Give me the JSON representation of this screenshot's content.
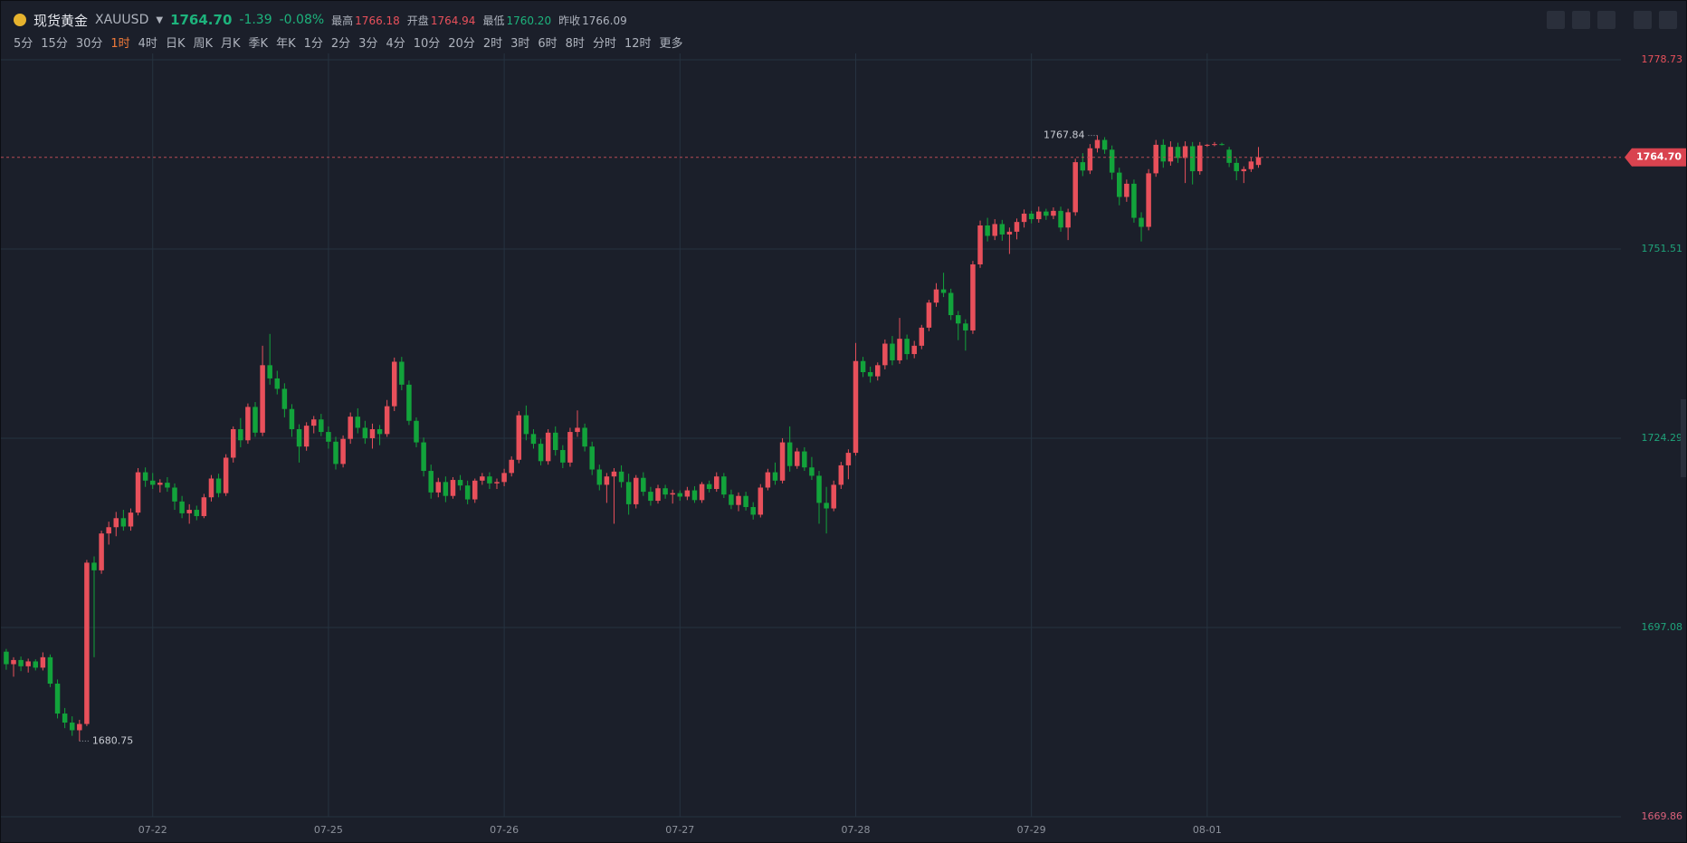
{
  "header": {
    "name": "现货黄金",
    "symbol": "XAUUSD",
    "price": "1764.70",
    "change": "-1.39",
    "change_pct": "-0.08%",
    "stats": [
      [
        "最高",
        "1766.18"
      ],
      [
        "开盘",
        "1764.94"
      ],
      [
        "最低",
        "1760.20"
      ],
      [
        "昨收",
        "1766.09"
      ]
    ],
    "intervals": [
      "5分",
      "15分",
      "30分",
      "1时",
      "4时",
      "日K",
      "周K",
      "月K",
      "季K",
      "年K",
      "1分",
      "2分",
      "3分",
      "4分",
      "10分",
      "20分",
      "2时",
      "3时",
      "6时",
      "8时",
      "分时",
      "12时",
      "更多"
    ],
    "active_interval": 3
  },
  "chart_data": {
    "type": "candlestick",
    "up_color": "#e8505b",
    "down_color": "#12a33b",
    "grid": true,
    "xlim": [
      -0.73,
      220.5
    ],
    "xticks": [
      {
        "value": 20,
        "label": "07-22"
      },
      {
        "value": 44,
        "label": "07-25"
      },
      {
        "value": 68,
        "label": "07-26"
      },
      {
        "value": 92,
        "label": "07-27"
      },
      {
        "value": 116,
        "label": "07-28"
      },
      {
        "value": 140,
        "label": "07-29"
      },
      {
        "value": 164,
        "label": "08-01"
      }
    ],
    "ylim": [
      1669.86,
      1778.73
    ],
    "yticks": [
      1669.86,
      1697.08,
      1724.29,
      1751.51,
      1778.73
    ],
    "ytick_colors": [
      "#d9607a",
      "#1fa37a",
      "#1fa37a",
      "#1fa37a",
      "#e8505b"
    ],
    "last_price": {
      "value": 1764.7,
      "label": "1764.70"
    },
    "annotations": [
      1767.84,
      1680.75
    ],
    "candles": [
      [
        1693.6,
        1694.0,
        1691.0,
        1691.8
      ],
      [
        1691.8,
        1692.8,
        1690.0,
        1692.4
      ],
      [
        1692.4,
        1692.9,
        1690.8,
        1691.5
      ],
      [
        1691.5,
        1692.6,
        1690.6,
        1692.2
      ],
      [
        1692.2,
        1692.5,
        1690.9,
        1691.3
      ],
      [
        1691.3,
        1693.5,
        1690.9,
        1692.8
      ],
      [
        1692.8,
        1693.2,
        1688.5,
        1689.0
      ],
      [
        1689.0,
        1689.6,
        1684.0,
        1684.7
      ],
      [
        1684.7,
        1685.5,
        1682.6,
        1683.4
      ],
      [
        1683.4,
        1684.3,
        1681.5,
        1682.3
      ],
      [
        1682.3,
        1683.8,
        1680.75,
        1683.2
      ],
      [
        1683.2,
        1706.8,
        1682.9,
        1706.4
      ],
      [
        1706.4,
        1707.3,
        1692.8,
        1705.3
      ],
      [
        1705.3,
        1711.0,
        1704.8,
        1710.6
      ],
      [
        1710.6,
        1712.3,
        1709.0,
        1711.5
      ],
      [
        1711.5,
        1713.7,
        1710.2,
        1712.8
      ],
      [
        1712.8,
        1714.0,
        1711.0,
        1711.6
      ],
      [
        1711.6,
        1714.2,
        1711.0,
        1713.6
      ],
      [
        1713.6,
        1720.0,
        1713.2,
        1719.4
      ],
      [
        1719.4,
        1720.1,
        1717.3,
        1718.2
      ],
      [
        1718.2,
        1719.3,
        1717.0,
        1717.6
      ],
      [
        1717.6,
        1718.4,
        1716.5,
        1717.9
      ],
      [
        1717.9,
        1718.7,
        1716.6,
        1717.2
      ],
      [
        1717.2,
        1717.8,
        1714.0,
        1715.2
      ],
      [
        1715.2,
        1716.0,
        1712.8,
        1713.5
      ],
      [
        1713.5,
        1714.8,
        1712.0,
        1714.0
      ],
      [
        1714.0,
        1714.6,
        1712.5,
        1713.1
      ],
      [
        1713.1,
        1716.3,
        1712.8,
        1715.8
      ],
      [
        1715.8,
        1719.0,
        1715.2,
        1718.5
      ],
      [
        1718.5,
        1719.2,
        1715.8,
        1716.4
      ],
      [
        1716.4,
        1722.0,
        1716.0,
        1721.5
      ],
      [
        1721.5,
        1726.0,
        1720.8,
        1725.6
      ],
      [
        1725.6,
        1727.2,
        1723.0,
        1724.0
      ],
      [
        1724.0,
        1729.3,
        1723.5,
        1728.8
      ],
      [
        1728.8,
        1729.5,
        1724.5,
        1725.1
      ],
      [
        1725.1,
        1737.6,
        1724.6,
        1734.8
      ],
      [
        1734.8,
        1739.3,
        1732.0,
        1732.9
      ],
      [
        1732.9,
        1734.0,
        1730.6,
        1731.4
      ],
      [
        1731.4,
        1732.2,
        1727.3,
        1728.5
      ],
      [
        1728.5,
        1729.2,
        1724.5,
        1725.6
      ],
      [
        1725.6,
        1726.3,
        1720.8,
        1723.1
      ],
      [
        1723.1,
        1726.6,
        1722.5,
        1726.1
      ],
      [
        1726.1,
        1727.5,
        1725.0,
        1727.0
      ],
      [
        1727.0,
        1727.8,
        1724.6,
        1725.2
      ],
      [
        1725.2,
        1726.0,
        1722.8,
        1723.8
      ],
      [
        1723.8,
        1724.5,
        1719.8,
        1720.6
      ],
      [
        1720.6,
        1724.7,
        1720.1,
        1724.2
      ],
      [
        1724.2,
        1728.0,
        1723.5,
        1727.4
      ],
      [
        1727.4,
        1728.6,
        1725.0,
        1725.8
      ],
      [
        1725.8,
        1726.8,
        1723.5,
        1724.3
      ],
      [
        1724.3,
        1726.4,
        1722.8,
        1725.6
      ],
      [
        1725.6,
        1726.2,
        1723.3,
        1724.9
      ],
      [
        1724.9,
        1729.8,
        1724.5,
        1728.9
      ],
      [
        1728.9,
        1735.9,
        1728.2,
        1735.3
      ],
      [
        1735.3,
        1736.0,
        1731.2,
        1732.0
      ],
      [
        1732.0,
        1732.6,
        1726.2,
        1726.8
      ],
      [
        1726.8,
        1727.3,
        1723.0,
        1723.7
      ],
      [
        1723.7,
        1724.4,
        1718.8,
        1719.6
      ],
      [
        1719.6,
        1720.5,
        1715.6,
        1716.5
      ],
      [
        1716.5,
        1718.6,
        1715.8,
        1718.0
      ],
      [
        1718.0,
        1718.8,
        1715.1,
        1716.0
      ],
      [
        1716.0,
        1718.7,
        1715.6,
        1718.3
      ],
      [
        1718.3,
        1719.0,
        1716.8,
        1717.5
      ],
      [
        1717.5,
        1718.2,
        1714.8,
        1715.5
      ],
      [
        1715.5,
        1718.5,
        1715.0,
        1718.2
      ],
      [
        1718.2,
        1719.3,
        1717.6,
        1718.8
      ],
      [
        1718.8,
        1719.4,
        1717.0,
        1717.8
      ],
      [
        1717.8,
        1718.5,
        1717.0,
        1718.0
      ],
      [
        1718.0,
        1719.9,
        1717.4,
        1719.3
      ],
      [
        1719.3,
        1721.7,
        1718.8,
        1721.2
      ],
      [
        1721.2,
        1728.2,
        1720.7,
        1727.6
      ],
      [
        1727.6,
        1729.0,
        1724.0,
        1724.9
      ],
      [
        1724.9,
        1725.6,
        1722.8,
        1723.5
      ],
      [
        1723.5,
        1724.2,
        1720.4,
        1721.0
      ],
      [
        1721.0,
        1725.6,
        1720.5,
        1725.1
      ],
      [
        1725.1,
        1726.0,
        1721.8,
        1722.6
      ],
      [
        1722.6,
        1723.3,
        1720.0,
        1720.8
      ],
      [
        1720.8,
        1725.8,
        1720.2,
        1725.2
      ],
      [
        1725.2,
        1728.3,
        1724.5,
        1725.8
      ],
      [
        1725.8,
        1726.4,
        1722.4,
        1723.1
      ],
      [
        1723.1,
        1723.8,
        1719.0,
        1719.8
      ],
      [
        1719.8,
        1720.5,
        1716.8,
        1717.6
      ],
      [
        1717.6,
        1719.3,
        1715.0,
        1718.8
      ],
      [
        1718.8,
        1720.0,
        1712.0,
        1719.5
      ],
      [
        1719.5,
        1720.4,
        1717.2,
        1718.0
      ],
      [
        1718.0,
        1719.2,
        1713.3,
        1714.8
      ],
      [
        1714.8,
        1719.0,
        1714.2,
        1718.6
      ],
      [
        1718.6,
        1719.4,
        1716.0,
        1716.6
      ],
      [
        1716.6,
        1717.3,
        1714.6,
        1715.3
      ],
      [
        1715.3,
        1717.6,
        1714.9,
        1717.1
      ],
      [
        1717.1,
        1717.6,
        1715.6,
        1716.2
      ],
      [
        1716.2,
        1716.9,
        1714.9,
        1716.4
      ],
      [
        1716.4,
        1716.8,
        1715.3,
        1715.9
      ],
      [
        1715.9,
        1717.3,
        1715.4,
        1716.8
      ],
      [
        1716.8,
        1717.4,
        1715.0,
        1715.4
      ],
      [
        1715.4,
        1718.0,
        1715.0,
        1717.7
      ],
      [
        1717.7,
        1718.2,
        1716.5,
        1717.0
      ],
      [
        1717.0,
        1719.4,
        1716.6,
        1718.8
      ],
      [
        1718.8,
        1719.3,
        1715.7,
        1716.2
      ],
      [
        1716.2,
        1716.9,
        1714.1,
        1714.7
      ],
      [
        1714.7,
        1716.5,
        1713.8,
        1716.0
      ],
      [
        1716.0,
        1716.6,
        1713.9,
        1714.4
      ],
      [
        1714.4,
        1715.1,
        1712.6,
        1713.3
      ],
      [
        1713.3,
        1717.7,
        1712.9,
        1717.2
      ],
      [
        1717.2,
        1719.9,
        1716.8,
        1719.4
      ],
      [
        1719.4,
        1720.8,
        1717.6,
        1718.2
      ],
      [
        1718.2,
        1724.3,
        1717.8,
        1723.7
      ],
      [
        1723.7,
        1726.0,
        1719.5,
        1720.3
      ],
      [
        1720.3,
        1722.9,
        1719.9,
        1722.4
      ],
      [
        1722.4,
        1723.0,
        1719.6,
        1720.1
      ],
      [
        1720.1,
        1721.6,
        1718.3,
        1718.9
      ],
      [
        1718.9,
        1719.6,
        1712.0,
        1715.0
      ],
      [
        1715.0,
        1717.3,
        1710.6,
        1714.2
      ],
      [
        1714.2,
        1718.2,
        1713.8,
        1717.6
      ],
      [
        1717.6,
        1720.9,
        1717.0,
        1720.4
      ],
      [
        1720.4,
        1722.7,
        1718.4,
        1722.2
      ],
      [
        1722.2,
        1738.0,
        1721.8,
        1735.4
      ],
      [
        1735.4,
        1736.0,
        1733.1,
        1733.8
      ],
      [
        1733.8,
        1734.6,
        1732.3,
        1733.2
      ],
      [
        1733.2,
        1735.2,
        1732.6,
        1734.8
      ],
      [
        1734.8,
        1738.5,
        1734.2,
        1737.9
      ],
      [
        1737.9,
        1739.0,
        1734.8,
        1735.5
      ],
      [
        1735.5,
        1741.6,
        1735.0,
        1738.6
      ],
      [
        1738.6,
        1739.2,
        1735.6,
        1736.4
      ],
      [
        1736.4,
        1738.3,
        1735.8,
        1737.6
      ],
      [
        1737.6,
        1740.6,
        1737.1,
        1740.2
      ],
      [
        1740.2,
        1744.2,
        1739.7,
        1743.8
      ],
      [
        1743.8,
        1746.6,
        1743.2,
        1745.7
      ],
      [
        1745.7,
        1748.1,
        1744.6,
        1745.2
      ],
      [
        1745.2,
        1745.8,
        1741.3,
        1742.0
      ],
      [
        1742.0,
        1742.6,
        1738.4,
        1740.8
      ],
      [
        1740.8,
        1741.4,
        1736.9,
        1739.8
      ],
      [
        1739.8,
        1749.8,
        1739.3,
        1749.3
      ],
      [
        1749.3,
        1755.6,
        1748.8,
        1754.9
      ],
      [
        1754.9,
        1756.0,
        1752.6,
        1753.4
      ],
      [
        1753.4,
        1755.8,
        1752.8,
        1755.1
      ],
      [
        1755.1,
        1755.7,
        1752.7,
        1753.6
      ],
      [
        1753.6,
        1754.6,
        1750.8,
        1754.0
      ],
      [
        1754.0,
        1755.9,
        1752.9,
        1755.4
      ],
      [
        1755.4,
        1757.2,
        1754.6,
        1756.6
      ],
      [
        1756.6,
        1757.0,
        1755.2,
        1755.8
      ],
      [
        1755.8,
        1757.6,
        1755.3,
        1756.9
      ],
      [
        1756.9,
        1757.3,
        1755.7,
        1756.3
      ],
      [
        1756.3,
        1757.5,
        1755.8,
        1757.0
      ],
      [
        1757.0,
        1757.6,
        1754.0,
        1754.6
      ],
      [
        1754.6,
        1757.3,
        1752.8,
        1756.8
      ],
      [
        1756.8,
        1764.5,
        1756.3,
        1764.0
      ],
      [
        1764.0,
        1765.3,
        1762.0,
        1762.8
      ],
      [
        1762.8,
        1766.6,
        1762.3,
        1766.0
      ],
      [
        1766.0,
        1767.84,
        1765.4,
        1767.2
      ],
      [
        1767.2,
        1767.6,
        1765.2,
        1765.8
      ],
      [
        1765.8,
        1766.4,
        1761.5,
        1762.5
      ],
      [
        1762.5,
        1763.2,
        1757.8,
        1759.0
      ],
      [
        1759.0,
        1761.5,
        1758.3,
        1760.9
      ],
      [
        1760.9,
        1761.5,
        1755.3,
        1756.0
      ],
      [
        1756.0,
        1756.8,
        1752.6,
        1754.7
      ],
      [
        1754.7,
        1763.0,
        1754.2,
        1762.4
      ],
      [
        1762.4,
        1767.2,
        1761.9,
        1766.5
      ],
      [
        1766.5,
        1767.3,
        1763.2,
        1764.1
      ],
      [
        1764.1,
        1767.0,
        1763.5,
        1766.2
      ],
      [
        1766.2,
        1766.8,
        1763.9,
        1764.6
      ],
      [
        1764.6,
        1767.0,
        1761.0,
        1766.3
      ],
      [
        1766.3,
        1766.9,
        1760.8,
        1762.7
      ],
      [
        1762.7,
        1766.9,
        1762.2,
        1766.4
      ],
      [
        1766.4,
        1766.6,
        1766.2,
        1766.5
      ],
      [
        1766.5,
        1766.9,
        1766.3,
        1766.6
      ],
      [
        1766.6,
        1766.8,
        1766.4,
        1766.5
      ],
      [
        1765.8,
        1766.2,
        1763.3,
        1763.9
      ],
      [
        1763.9,
        1764.6,
        1761.4,
        1762.7
      ],
      [
        1762.7,
        1763.4,
        1761.0,
        1763.0
      ],
      [
        1763.0,
        1764.7,
        1762.6,
        1764.1
      ],
      [
        1763.6,
        1766.18,
        1763.2,
        1764.7
      ]
    ]
  }
}
